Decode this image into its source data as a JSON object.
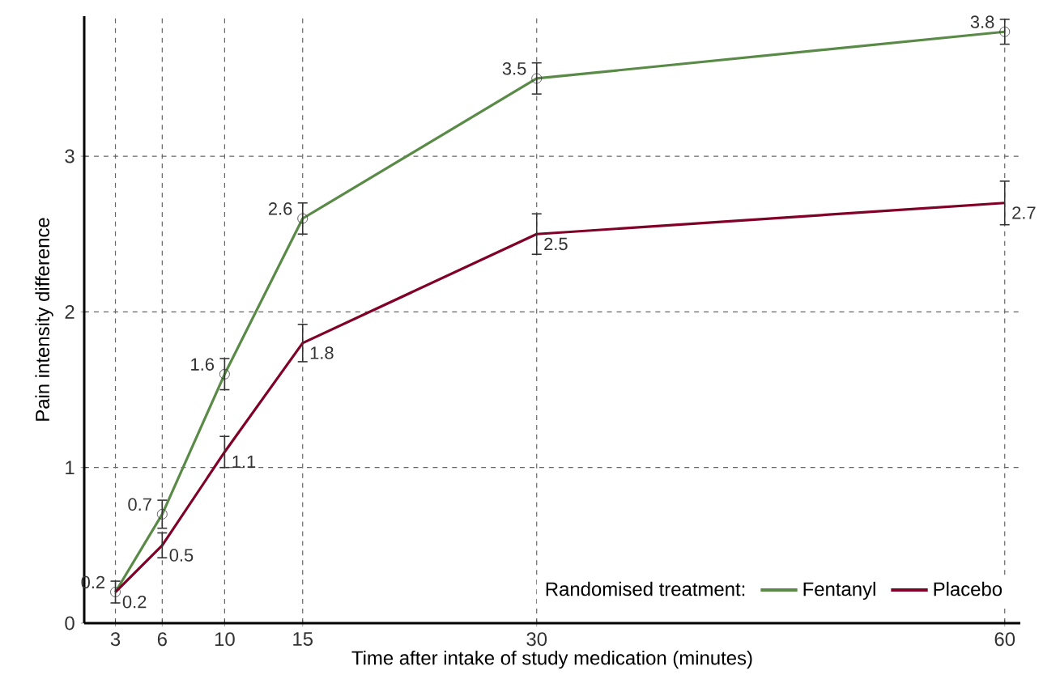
{
  "chart_data": {
    "type": "line",
    "xlabel": "Time after intake of study medication (minutes)",
    "ylabel": "Pain intensity difference",
    "legend_title": "Randomised treatment:",
    "x": [
      3,
      6,
      10,
      15,
      30,
      60
    ],
    "xlim": [
      1,
      61
    ],
    "xticks": [
      3,
      6,
      10,
      15,
      30,
      60
    ],
    "ylim": [
      0,
      3.9
    ],
    "yticks": [
      0,
      1,
      2,
      3
    ],
    "grid": true,
    "legend": "bottom right",
    "line_style": "solid",
    "series": [
      {
        "name": "Fentanyl",
        "color": "#5a8a47",
        "marker": "circle",
        "values": [
          0.2,
          0.7,
          1.6,
          2.6,
          3.5,
          3.8
        ],
        "errors": [
          null,
          0.09,
          0.1,
          0.1,
          0.1,
          0.08
        ],
        "value_labels": [
          "0.2",
          "0.7",
          "1.6",
          "2.6",
          "3.5",
          "3.8"
        ]
      },
      {
        "name": "Placebo",
        "color": "#800028",
        "marker": "none",
        "values": [
          0.2,
          0.5,
          1.1,
          1.8,
          2.5,
          2.7
        ],
        "errors": [
          0.07,
          0.08,
          0.1,
          0.12,
          0.13,
          0.14
        ],
        "value_labels": [
          "0.2",
          "0.5",
          "1.1",
          "1.8",
          "2.5",
          "2.7"
        ]
      }
    ]
  }
}
